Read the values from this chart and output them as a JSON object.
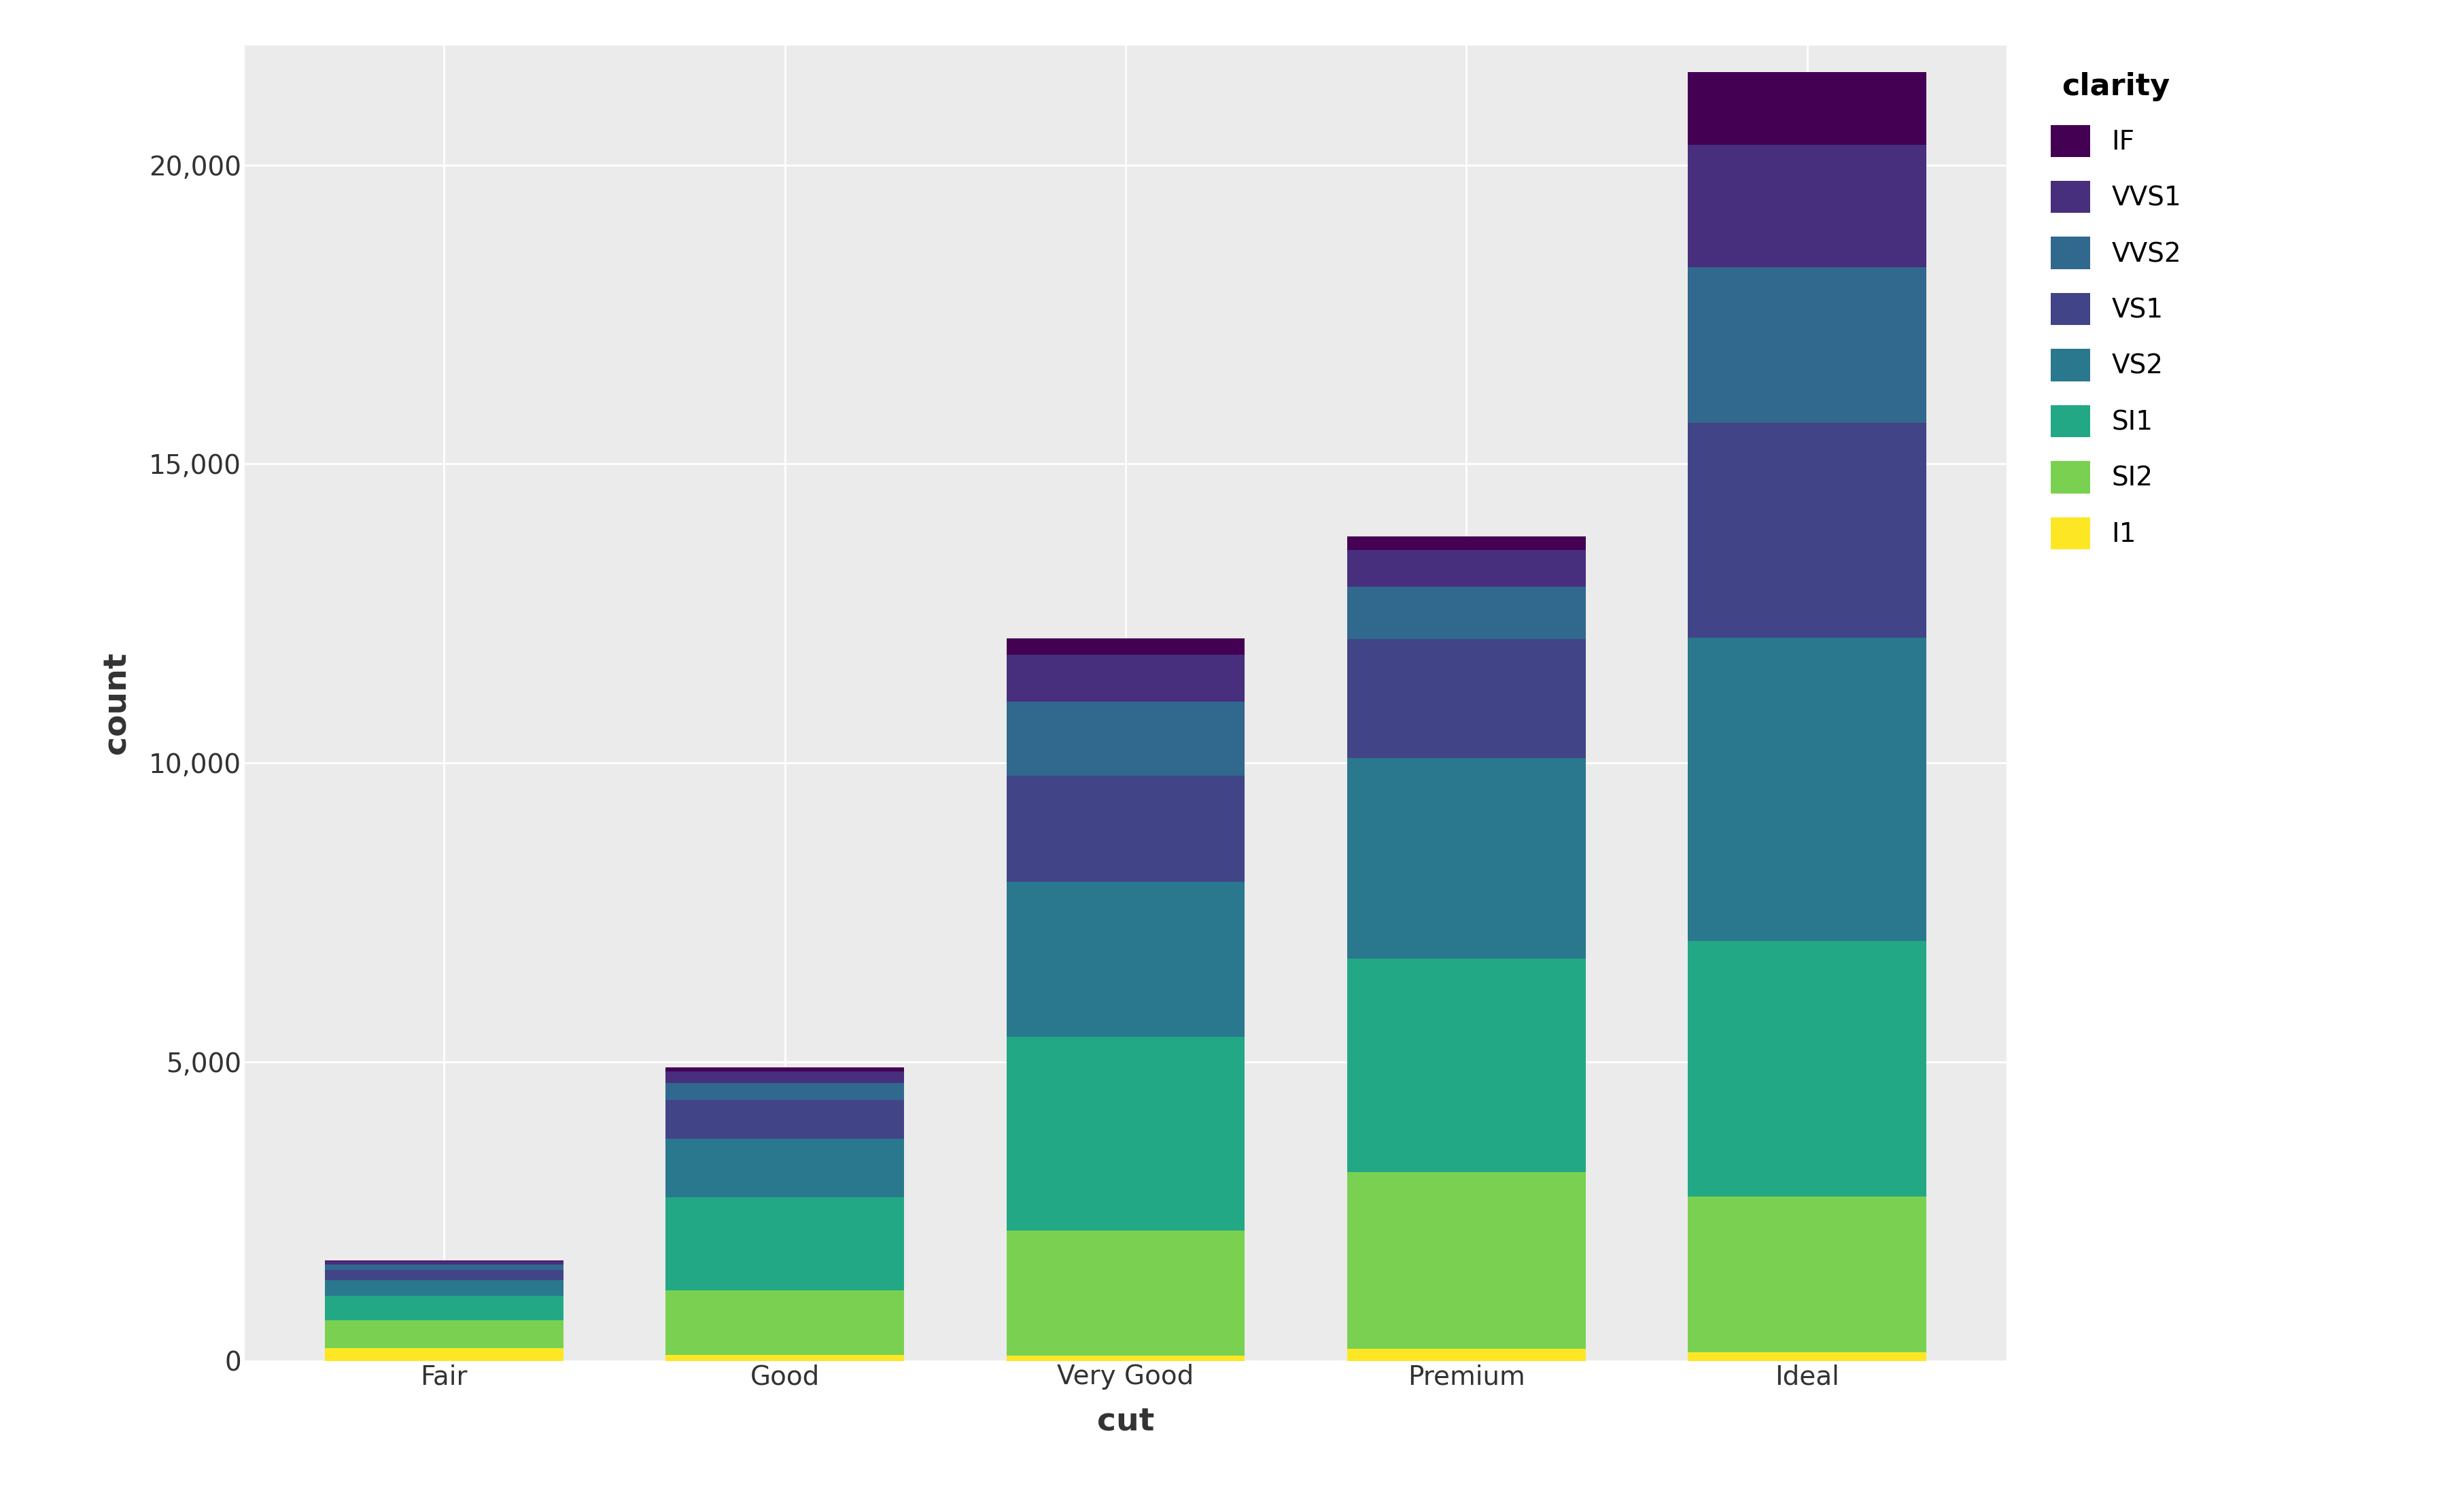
{
  "cuts": [
    "Fair",
    "Good",
    "Very Good",
    "Premium",
    "Ideal"
  ],
  "clarities": [
    "I1",
    "SI2",
    "SI1",
    "VS2",
    "VS1",
    "VVS2",
    "VVS1",
    "IF"
  ],
  "counts": {
    "Fair": [
      210,
      466,
      408,
      261,
      170,
      93,
      54,
      17
    ],
    "Good": [
      96,
      1081,
      1560,
      978,
      648,
      286,
      186,
      71
    ],
    "Very Good": [
      84,
      2100,
      3240,
      2591,
      1775,
      1235,
      789,
      268
    ],
    "Premium": [
      205,
      2949,
      3575,
      3357,
      1989,
      870,
      616,
      230
    ],
    "Ideal": [
      146,
      2598,
      4282,
      5071,
      3589,
      2606,
      2047,
      1212
    ]
  },
  "colors": {
    "I1": "#FDE725",
    "SI2": "#7AD151",
    "SI1": "#22A884",
    "VS2": "#2A788E",
    "VS1": "#414487",
    "VVS2": "#31688E",
    "VVS1": "#472F7D",
    "IF": "#440154"
  },
  "legend_title": "clarity",
  "xlabel": "cut",
  "ylabel": "count",
  "ylim": [
    0,
    22000
  ],
  "yticks": [
    0,
    5000,
    10000,
    15000,
    20000
  ],
  "plot_bg_color": "#EBEBEB",
  "fig_bg_color": "#FFFFFF",
  "grid_color": "#FFFFFF",
  "axis_label_fontsize": 34,
  "tick_fontsize": 28,
  "legend_fontsize": 28,
  "legend_title_fontsize": 32,
  "bar_width": 0.7
}
